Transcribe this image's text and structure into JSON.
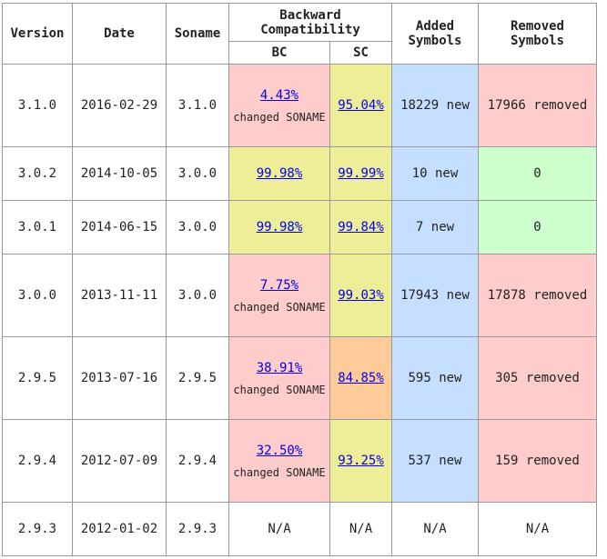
{
  "headers": {
    "version": "Version",
    "date": "Date",
    "soname": "Soname",
    "backward_line1": "Backward",
    "backward_line2": "Compatibility",
    "bc": "BC",
    "sc": "SC",
    "added_line1": "Added",
    "added_line2": "Symbols",
    "removed_line1": "Removed",
    "removed_line2": "Symbols"
  },
  "rows": [
    {
      "version": "3.1.0",
      "date": "2016-02-29",
      "soname": "3.1.0",
      "bc": "4.43%",
      "bc_note": "changed SONAME",
      "sc": "95.04%",
      "added": "18229 new",
      "removed": "17966 removed"
    },
    {
      "version": "3.0.2",
      "date": "2014-10-05",
      "soname": "3.0.0",
      "bc": "99.98%",
      "bc_note": "",
      "sc": "99.99%",
      "added": "10 new",
      "removed": "0"
    },
    {
      "version": "3.0.1",
      "date": "2014-06-15",
      "soname": "3.0.0",
      "bc": "99.98%",
      "bc_note": "",
      "sc": "99.84%",
      "added": "7 new",
      "removed": "0"
    },
    {
      "version": "3.0.0",
      "date": "2013-11-11",
      "soname": "3.0.0",
      "bc": "7.75%",
      "bc_note": "changed SONAME",
      "sc": "99.03%",
      "added": "17943 new",
      "removed": "17878 removed"
    },
    {
      "version": "2.9.5",
      "date": "2013-07-16",
      "soname": "2.9.5",
      "bc": "38.91%",
      "bc_note": "changed SONAME",
      "sc": "84.85%",
      "added": "595 new",
      "removed": "305 removed"
    },
    {
      "version": "2.9.4",
      "date": "2012-07-09",
      "soname": "2.9.4",
      "bc": "32.50%",
      "bc_note": "changed SONAME",
      "sc": "93.25%",
      "added": "537 new",
      "removed": "159 removed"
    },
    {
      "version": "2.9.3",
      "date": "2012-01-02",
      "soname": "2.9.3",
      "bc": "N/A",
      "bc_note": "",
      "sc": "N/A",
      "added": "N/A",
      "removed": "N/A"
    }
  ],
  "colors": {
    "red": "#ffcccc",
    "yellow": "#eeee99",
    "orange": "#ffcc99",
    "blue": "#c6deff",
    "green": "#ccffcc",
    "link": "#0000ee",
    "border": "#999999"
  }
}
